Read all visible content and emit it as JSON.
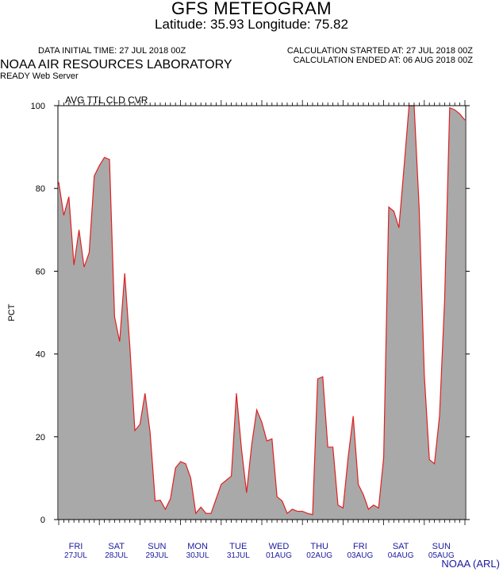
{
  "header": {
    "title": "GFS METEOGRAM",
    "latlon": "Latitude: 35.93 Longitude:  75.82",
    "data_initial_time": "DATA INITIAL TIME: 27 JUL 2018 00Z",
    "calc_started": "CALCULATION STARTED AT: 27 JUL 2018 00Z",
    "calc_ended": "CALCULATION ENDED AT: 06 AUG 2018 00Z",
    "lab": "NOAA AIR RESOURCES LABORATORY",
    "server": "READY Web Server"
  },
  "credit": "NOAA (ARL)",
  "colors": {
    "fill": "#a9a9a9",
    "line": "#e02020",
    "axis_labels": "#1a1aa0"
  },
  "chart_data": {
    "type": "area",
    "title": "AVG TTL CLD CVR",
    "xlabel": "",
    "ylabel": "PCT",
    "ylim": [
      0,
      100
    ],
    "yticks": [
      0,
      20,
      40,
      60,
      80,
      100
    ],
    "grid": false,
    "x_step_hours": 3,
    "x_start": "2018-07-27 00Z",
    "days": [
      {
        "dow": "FRI",
        "date": "27JUL"
      },
      {
        "dow": "SAT",
        "date": "28JUL"
      },
      {
        "dow": "SUN",
        "date": "29JUL"
      },
      {
        "dow": "MON",
        "date": "30JUL"
      },
      {
        "dow": "TUE",
        "date": "31JUL"
      },
      {
        "dow": "WED",
        "date": "01AUG"
      },
      {
        "dow": "THU",
        "date": "02AUG"
      },
      {
        "dow": "FRI",
        "date": "03AUG"
      },
      {
        "dow": "SAT",
        "date": "04AUG"
      },
      {
        "dow": "SUN",
        "date": "05AUG"
      }
    ],
    "series": [
      {
        "values": [
          81.5,
          73.5,
          78,
          61.5,
          70,
          61,
          64.5,
          83,
          85.5,
          87.5,
          87,
          49,
          43,
          59.5,
          42,
          21.5,
          23,
          30.5,
          21,
          4.5,
          4.7,
          2.5,
          5,
          12.5,
          14,
          13.5,
          10,
          1.5,
          3,
          1.5,
          1.5,
          5,
          8.5,
          9.5,
          10.5,
          30.5,
          17,
          6.5,
          18,
          26.5,
          23.5,
          19,
          19.5,
          5.5,
          4.5,
          1.5,
          2.5,
          2,
          2,
          1.5,
          1.2,
          34,
          34.5,
          17.5,
          17.5,
          3.5,
          2.8,
          15,
          25,
          8.5,
          6,
          2.5,
          3.5,
          2.8,
          15,
          75.5,
          74.5,
          70.5,
          85,
          100,
          100,
          75,
          35,
          14.5,
          13.5,
          25,
          53,
          99.5,
          99,
          98,
          96.5
        ]
      }
    ]
  }
}
